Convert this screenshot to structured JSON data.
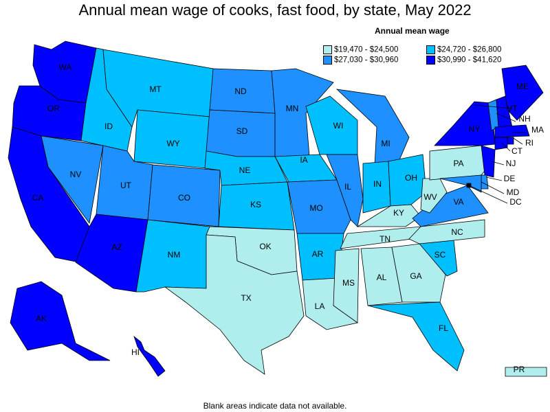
{
  "title": "Annual mean wage of cooks, fast food, by state, May 2022",
  "legend": {
    "title": "Annual mean wage",
    "bins": [
      {
        "label": "$19,470 - $24,500",
        "color": "#b0eeee"
      },
      {
        "label": "$24,720 - $26,800",
        "color": "#00bfff"
      },
      {
        "label": "$27,030 - $30,960",
        "color": "#1e90ff"
      },
      {
        "label": "$30,990 - $41,620",
        "color": "#0000ff"
      }
    ]
  },
  "note": "Blank areas indicate data not available.",
  "states": [
    {
      "abbr": "WA",
      "bin": 3
    },
    {
      "abbr": "OR",
      "bin": 3
    },
    {
      "abbr": "CA",
      "bin": 3
    },
    {
      "abbr": "NV",
      "bin": 2
    },
    {
      "abbr": "ID",
      "bin": 1
    },
    {
      "abbr": "MT",
      "bin": 1
    },
    {
      "abbr": "WY",
      "bin": 1
    },
    {
      "abbr": "UT",
      "bin": 2
    },
    {
      "abbr": "AZ",
      "bin": 3
    },
    {
      "abbr": "CO",
      "bin": 2
    },
    {
      "abbr": "NM",
      "bin": 1
    },
    {
      "abbr": "ND",
      "bin": 2
    },
    {
      "abbr": "SD",
      "bin": 2
    },
    {
      "abbr": "NE",
      "bin": 1
    },
    {
      "abbr": "KS",
      "bin": 1
    },
    {
      "abbr": "OK",
      "bin": 0
    },
    {
      "abbr": "TX",
      "bin": 0
    },
    {
      "abbr": "MN",
      "bin": 2
    },
    {
      "abbr": "IA",
      "bin": 1
    },
    {
      "abbr": "MO",
      "bin": 2
    },
    {
      "abbr": "AR",
      "bin": 1
    },
    {
      "abbr": "LA",
      "bin": 0
    },
    {
      "abbr": "WI",
      "bin": 1
    },
    {
      "abbr": "IL",
      "bin": 2
    },
    {
      "abbr": "MI",
      "bin": 2
    },
    {
      "abbr": "IN",
      "bin": 1
    },
    {
      "abbr": "OH",
      "bin": 1
    },
    {
      "abbr": "KY",
      "bin": 0
    },
    {
      "abbr": "TN",
      "bin": 0
    },
    {
      "abbr": "MS",
      "bin": 0
    },
    {
      "abbr": "AL",
      "bin": 0
    },
    {
      "abbr": "GA",
      "bin": 0
    },
    {
      "abbr": "FL",
      "bin": 1
    },
    {
      "abbr": "SC",
      "bin": 1
    },
    {
      "abbr": "NC",
      "bin": 0
    },
    {
      "abbr": "VA",
      "bin": 2
    },
    {
      "abbr": "WV",
      "bin": 0
    },
    {
      "abbr": "PA",
      "bin": 0
    },
    {
      "abbr": "NY",
      "bin": 3
    },
    {
      "abbr": "VT",
      "bin": 2
    },
    {
      "abbr": "NH",
      "bin": 3
    },
    {
      "abbr": "ME",
      "bin": 3
    },
    {
      "abbr": "MA",
      "bin": 3
    },
    {
      "abbr": "RI",
      "bin": 3
    },
    {
      "abbr": "CT",
      "bin": 3
    },
    {
      "abbr": "NJ",
      "bin": 3
    },
    {
      "abbr": "DE",
      "bin": 2
    },
    {
      "abbr": "MD",
      "bin": 2
    },
    {
      "abbr": "DC",
      "bin": 3
    },
    {
      "abbr": "AK",
      "bin": 3
    },
    {
      "abbr": "HI",
      "bin": 3
    },
    {
      "abbr": "PR",
      "bin": 0
    }
  ]
}
